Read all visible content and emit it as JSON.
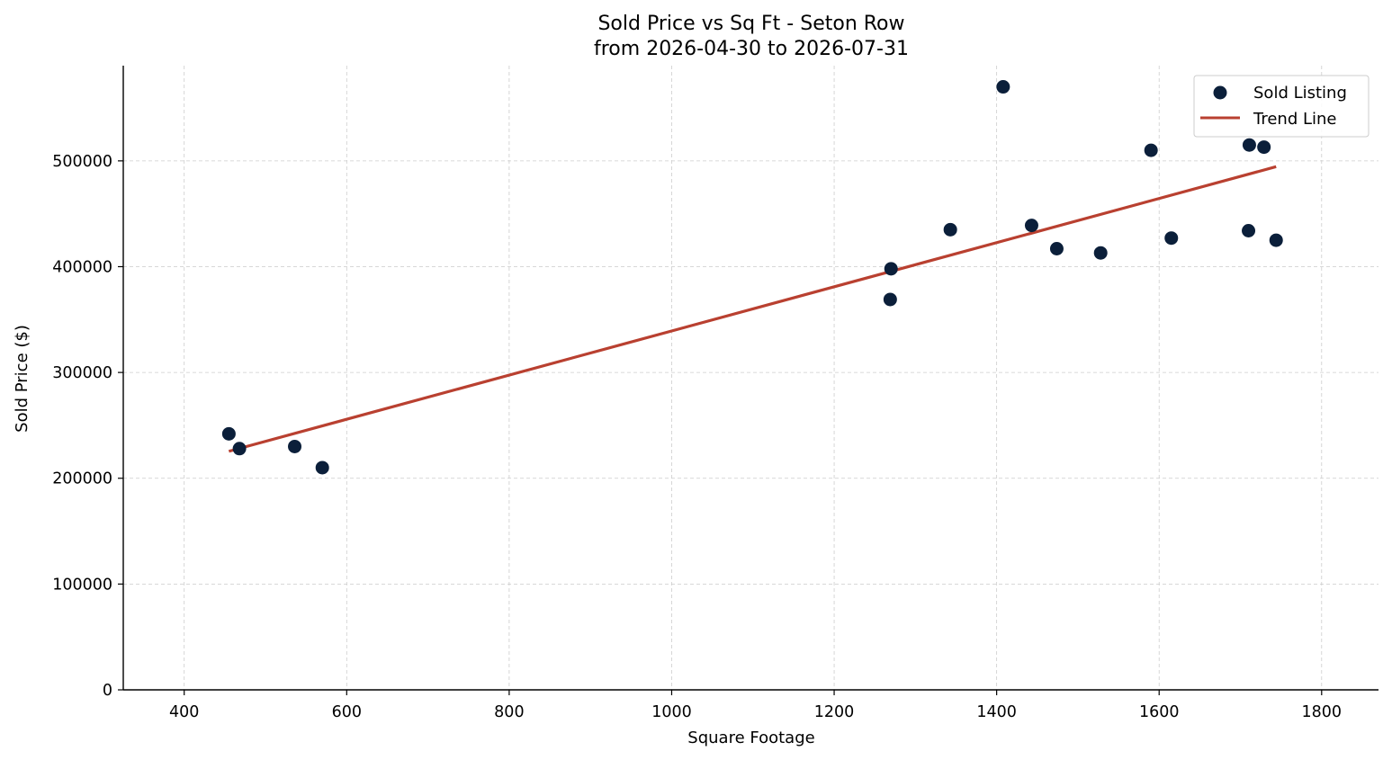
{
  "chart_data": {
    "type": "scatter",
    "title": "Sold Price vs Sq Ft - Seton Row",
    "subtitle": "from 2026-04-30 to 2026-07-31",
    "xlabel": "Square Footage",
    "ylabel": "Sold Price ($)",
    "xlim": [
      325,
      1870
    ],
    "ylim": [
      0,
      590000
    ],
    "xticks": [
      400,
      600,
      800,
      1000,
      1200,
      1400,
      1600,
      1800
    ],
    "yticks": [
      0,
      100000,
      200000,
      300000,
      400000,
      500000
    ],
    "grid": true,
    "legend_position": "top-right",
    "series": [
      {
        "name": "Sold Listing",
        "kind": "scatter",
        "color": "#0b1f3a",
        "points": [
          {
            "x": 455,
            "y": 242000
          },
          {
            "x": 468,
            "y": 228000
          },
          {
            "x": 536,
            "y": 230000
          },
          {
            "x": 570,
            "y": 210000
          },
          {
            "x": 1269,
            "y": 369000
          },
          {
            "x": 1270,
            "y": 398000
          },
          {
            "x": 1343,
            "y": 435000
          },
          {
            "x": 1408,
            "y": 570000
          },
          {
            "x": 1443,
            "y": 439000
          },
          {
            "x": 1474,
            "y": 417000
          },
          {
            "x": 1528,
            "y": 413000
          },
          {
            "x": 1590,
            "y": 510000
          },
          {
            "x": 1615,
            "y": 427000
          },
          {
            "x": 1710,
            "y": 434000
          },
          {
            "x": 1711,
            "y": 515000
          },
          {
            "x": 1729,
            "y": 513000
          },
          {
            "x": 1744,
            "y": 425000
          }
        ]
      },
      {
        "name": "Trend Line",
        "kind": "line",
        "color": "#b94030",
        "points": [
          {
            "x": 455,
            "y": 225500
          },
          {
            "x": 1744,
            "y": 494500
          }
        ]
      }
    ]
  }
}
